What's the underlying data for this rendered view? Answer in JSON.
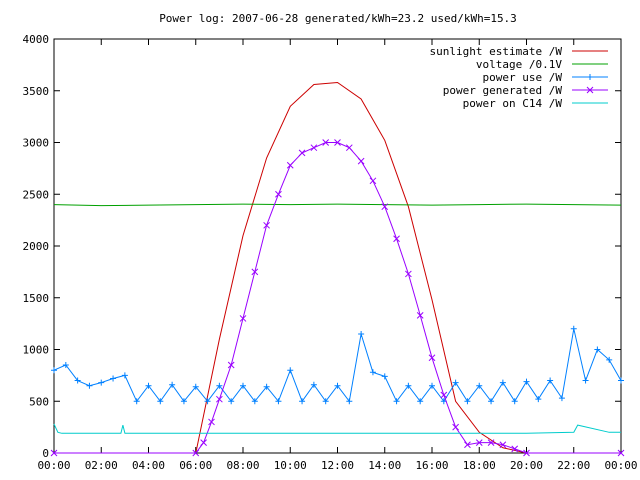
{
  "chart_data": {
    "type": "line",
    "title": "Power log: 2007-06-28 generated/kWh=23.2 used/kWh=15.3",
    "xlabel": "",
    "ylabel": "",
    "ylim": [
      0,
      4000
    ],
    "xlim_hours": [
      0,
      24
    ],
    "grid": false,
    "legend_position": "top-right",
    "y_ticks": [
      "0",
      "500",
      "1000",
      "1500",
      "2000",
      "2500",
      "3000",
      "3500",
      "4000"
    ],
    "x_ticks": [
      "00:00",
      "02:00",
      "04:00",
      "06:00",
      "08:00",
      "10:00",
      "12:00",
      "14:00",
      "16:00",
      "18:00",
      "20:00",
      "22:00",
      "00:00"
    ],
    "series": [
      {
        "name": "sunlight estimate /W",
        "color": "#cc0000",
        "style": "line",
        "x": [
          "06:00",
          "07:00",
          "08:00",
          "09:00",
          "10:00",
          "11:00",
          "12:00",
          "13:00",
          "14:00",
          "15:00",
          "16:00",
          "17:00",
          "18:00",
          "19:00",
          "20:00"
        ],
        "y": [
          0,
          1100,
          2100,
          2850,
          3350,
          3560,
          3580,
          3420,
          3020,
          2380,
          1480,
          500,
          200,
          50,
          0
        ]
      },
      {
        "name": "voltage /0.1V",
        "color": "#00a000",
        "style": "line",
        "x": [
          "00:00",
          "02:00",
          "04:00",
          "06:00",
          "08:00",
          "10:00",
          "12:00",
          "14:00",
          "16:00",
          "18:00",
          "20:00",
          "22:00",
          "24:00"
        ],
        "y": [
          2400,
          2390,
          2395,
          2400,
          2405,
          2400,
          2405,
          2400,
          2395,
          2400,
          2405,
          2400,
          2395
        ]
      },
      {
        "name": "power use /W",
        "color": "#0080ff",
        "style": "linespoints",
        "marker": "plus",
        "x": [
          "00:00",
          "00:30",
          "01:00",
          "01:30",
          "02:00",
          "02:30",
          "03:00",
          "03:30",
          "04:00",
          "04:30",
          "05:00",
          "05:30",
          "06:00",
          "06:30",
          "07:00",
          "07:30",
          "08:00",
          "08:30",
          "09:00",
          "09:30",
          "10:00",
          "10:30",
          "11:00",
          "11:30",
          "12:00",
          "12:30",
          "13:00",
          "13:30",
          "14:00",
          "14:30",
          "15:00",
          "15:30",
          "16:00",
          "16:30",
          "17:00",
          "17:30",
          "18:00",
          "18:30",
          "19:00",
          "19:30",
          "20:00",
          "20:30",
          "21:00",
          "21:30",
          "22:00",
          "22:30",
          "23:00",
          "23:30",
          "24:00"
        ],
        "y": [
          800,
          850,
          700,
          650,
          680,
          720,
          750,
          500,
          650,
          500,
          660,
          500,
          640,
          500,
          650,
          500,
          650,
          500,
          640,
          500,
          800,
          500,
          660,
          500,
          650,
          500,
          1150,
          780,
          740,
          500,
          650,
          500,
          650,
          500,
          680,
          500,
          650,
          500,
          680,
          500,
          690,
          520,
          700,
          530,
          1200,
          700,
          1000,
          900,
          700
        ]
      },
      {
        "name": "power generated /W",
        "color": "#9900ff",
        "style": "linespoints",
        "marker": "cross",
        "x": [
          "00:00",
          "06:00",
          "06:20",
          "06:40",
          "07:00",
          "07:30",
          "08:00",
          "08:30",
          "09:00",
          "09:30",
          "10:00",
          "10:30",
          "11:00",
          "11:30",
          "12:00",
          "12:30",
          "13:00",
          "13:30",
          "14:00",
          "14:30",
          "15:00",
          "15:30",
          "16:00",
          "16:30",
          "17:00",
          "17:30",
          "18:00",
          "18:30",
          "19:00",
          "19:30",
          "20:00",
          "24:00"
        ],
        "y": [
          0,
          0,
          100,
          300,
          520,
          850,
          1300,
          1750,
          2200,
          2500,
          2780,
          2900,
          2950,
          3000,
          3000,
          2950,
          2820,
          2630,
          2380,
          2070,
          1730,
          1330,
          920,
          560,
          250,
          80,
          100,
          100,
          80,
          40,
          0,
          0
        ]
      },
      {
        "name": "power on C14 /W",
        "color": "#00cccc",
        "style": "line",
        "x": [
          "00:00",
          "00:10",
          "00:20",
          "02:50",
          "02:55",
          "03:00",
          "03:10",
          "03:20",
          "20:00",
          "22:00",
          "22:10",
          "23:30",
          "24:00"
        ],
        "y": [
          280,
          200,
          190,
          190,
          270,
          190,
          190,
          190,
          190,
          200,
          270,
          200,
          200
        ]
      }
    ]
  }
}
